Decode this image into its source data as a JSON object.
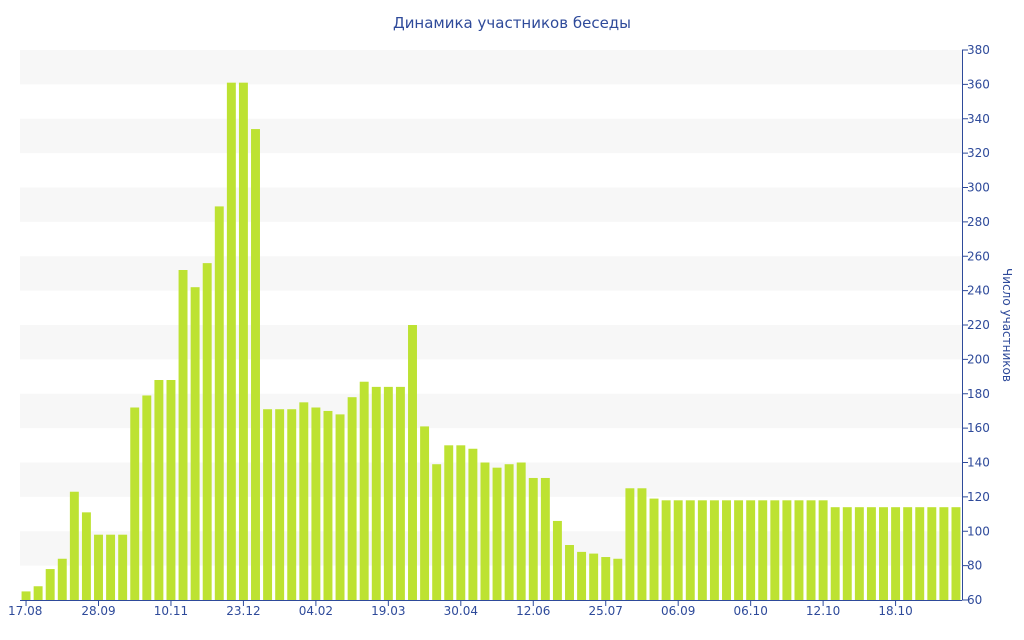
{
  "chart_data": {
    "type": "bar",
    "title": "Динамика участников беседы",
    "xlabel": "",
    "ylabel": "Число участников",
    "y_axis_side": "right",
    "ylim": [
      60,
      380
    ],
    "y_ticks": [
      60,
      80,
      100,
      120,
      140,
      160,
      180,
      200,
      220,
      240,
      260,
      280,
      300,
      320,
      340,
      360,
      380
    ],
    "x_tick_labels": [
      "17.08",
      "28.09",
      "10.11",
      "23.12",
      "04.02",
      "19.03",
      "30.04",
      "12.06",
      "25.07",
      "06.09",
      "06.10",
      "12.10",
      "18.10"
    ],
    "x_tick_bar_index": [
      0,
      6,
      12,
      18,
      24,
      30,
      36,
      42,
      48,
      54,
      60,
      66,
      72
    ],
    "bar_color": "#bde232",
    "grid": "alternating horizontal bands",
    "values": [
      65,
      68,
      78,
      84,
      123,
      111,
      98,
      98,
      98,
      172,
      179,
      188,
      188,
      252,
      242,
      256,
      289,
      361,
      361,
      334,
      171,
      171,
      171,
      175,
      172,
      170,
      168,
      178,
      187,
      184,
      184,
      184,
      220,
      161,
      139,
      150,
      150,
      148,
      140,
      137,
      139,
      140,
      131,
      131,
      106,
      92,
      88,
      87,
      85,
      84,
      125,
      125,
      119,
      118,
      118,
      118,
      118,
      118,
      118,
      118,
      118,
      118,
      118,
      118,
      118,
      118,
      118,
      114,
      114,
      114,
      114,
      114,
      114,
      114,
      114,
      114,
      114,
      114
    ]
  }
}
